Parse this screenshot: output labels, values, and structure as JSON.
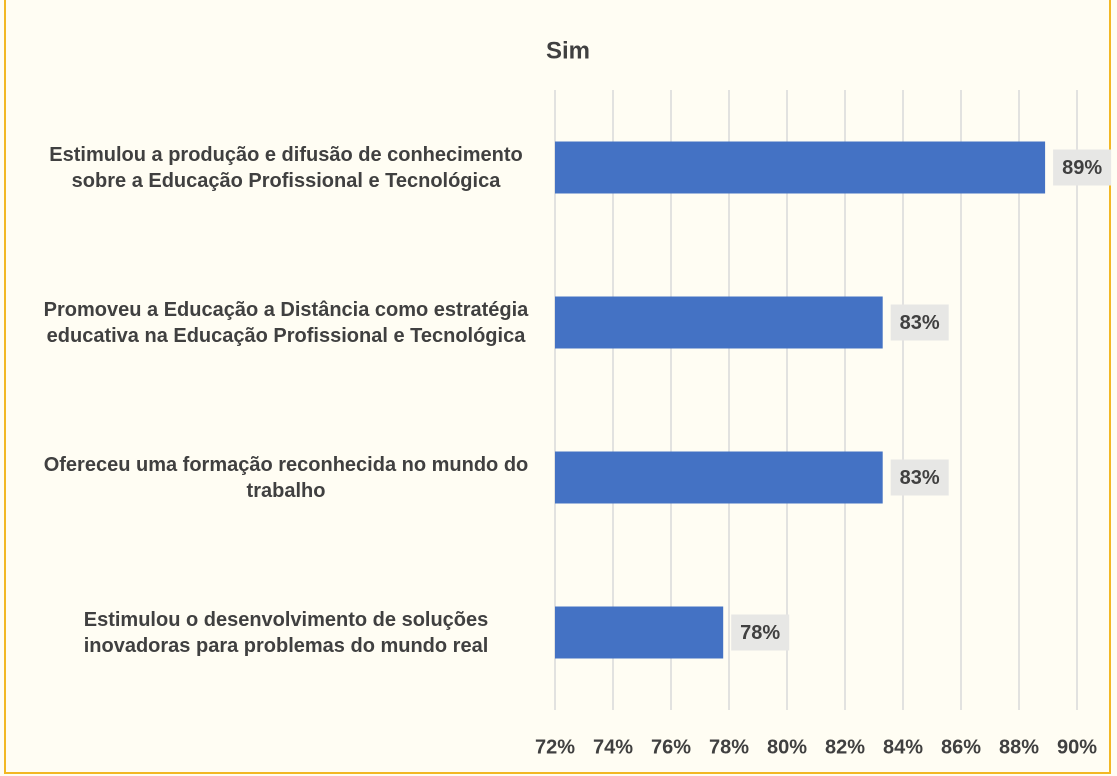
{
  "chart_data": {
    "type": "barh",
    "title": "Sim",
    "categories": [
      "Estimulou a produção e difusão de conhecimento sobre a Educação Profissional e Tecnológica",
      "Promoveu a Educação a Distância como estratégia educativa na Educação Profissional e Tecnológica",
      "Ofereceu uma formação reconhecida no mundo do trabalho",
      "Estimulou o desenvolvimento de soluções inovadoras para problemas do mundo real"
    ],
    "values": [
      88.9,
      83.3,
      83.3,
      77.8
    ],
    "value_labels": [
      "89%",
      "83%",
      "83%",
      "78%"
    ],
    "color": "#4472c4",
    "xlim": [
      72,
      90
    ],
    "xticks": [
      {
        "value": 72,
        "label": "72%"
      },
      {
        "value": 74,
        "label": "74%"
      },
      {
        "value": 76,
        "label": "76%"
      },
      {
        "value": 78,
        "label": "78%"
      },
      {
        "value": 80,
        "label": "80%"
      },
      {
        "value": 82,
        "label": "82%"
      },
      {
        "value": 84,
        "label": "84%"
      },
      {
        "value": 86,
        "label": "86%"
      },
      {
        "value": 88,
        "label": "88%"
      },
      {
        "value": 90,
        "label": "90%"
      }
    ],
    "grid": true
  }
}
